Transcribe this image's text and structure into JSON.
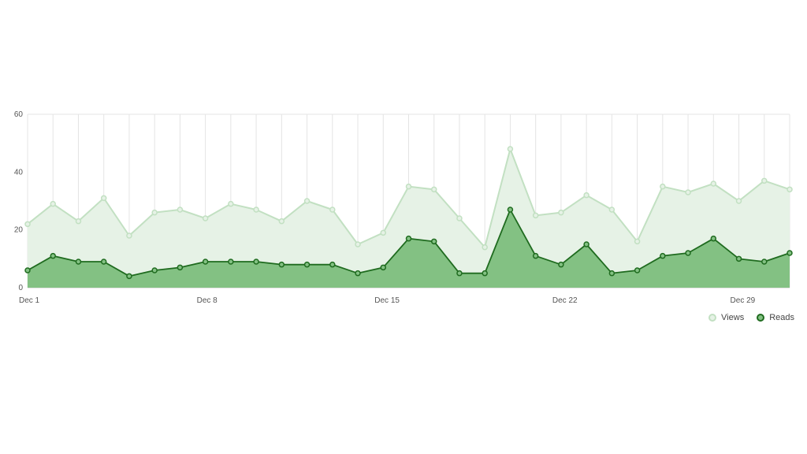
{
  "chart_data": {
    "type": "area",
    "x": [
      "Dec 1",
      "Dec 2",
      "Dec 3",
      "Dec 4",
      "Dec 5",
      "Dec 6",
      "Dec 7",
      "Dec 8",
      "Dec 9",
      "Dec 10",
      "Dec 11",
      "Dec 12",
      "Dec 13",
      "Dec 14",
      "Dec 15",
      "Dec 16",
      "Dec 17",
      "Dec 18",
      "Dec 19",
      "Dec 20",
      "Dec 21",
      "Dec 22",
      "Dec 23",
      "Dec 24",
      "Dec 25",
      "Dec 26",
      "Dec 27",
      "Dec 28",
      "Dec 29",
      "Dec 30",
      "Dec 31"
    ],
    "x_tick_labels": [
      "Dec 1",
      "Dec 8",
      "Dec 15",
      "Dec 22",
      "Dec 29"
    ],
    "x_tick_indices": [
      0,
      7,
      14,
      21,
      28
    ],
    "y_ticks": [
      0,
      20,
      40,
      60
    ],
    "ylim": [
      0,
      60
    ],
    "grid": "vertical",
    "legend_position": "bottom-right",
    "series": [
      {
        "name": "Views",
        "color": "#c2e0c2",
        "fill": "#e6f2e6",
        "values": [
          22,
          29,
          23,
          31,
          18,
          26,
          27,
          24,
          29,
          27,
          23,
          30,
          27,
          15,
          19,
          35,
          34,
          24,
          14,
          48,
          25,
          26,
          32,
          27,
          16,
          35,
          33,
          36,
          30,
          37,
          34
        ]
      },
      {
        "name": "Reads",
        "color": "#1f6b1f",
        "fill": "#83c183",
        "values": [
          6,
          11,
          9,
          9,
          4,
          6,
          7,
          9,
          9,
          9,
          8,
          8,
          8,
          5,
          7,
          17,
          16,
          5,
          5,
          27,
          11,
          8,
          15,
          5,
          6,
          11,
          12,
          17,
          10,
          9,
          12
        ]
      }
    ]
  }
}
